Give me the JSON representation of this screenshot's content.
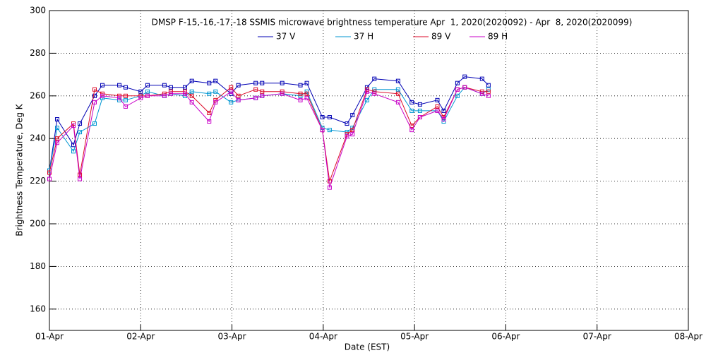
{
  "chart_data": {
    "type": "line",
    "title": "DMSP F-15,-16,-17,-18 SSMIS microwave brightness temperature Apr  1, 2020(2020092) - Apr  8, 2020(2020099)",
    "x_label": "Date (EST)",
    "y_label": "Brightness Temperature, Deg K",
    "x": [
      0,
      0.085,
      0.263,
      0.333,
      0.495,
      0.58,
      0.766,
      0.835,
      1.0,
      1.075,
      1.26,
      1.33,
      1.485,
      1.56,
      1.75,
      1.82,
      1.99,
      2.07,
      2.26,
      2.33,
      2.55,
      2.75,
      2.82,
      2.99,
      3.07,
      3.26,
      3.32,
      3.48,
      3.56,
      3.82,
      3.97,
      4.06,
      4.25,
      4.32,
      4.47,
      4.55,
      4.74,
      4.81
    ],
    "series": [
      {
        "name": "37 V",
        "color": "#0000b4",
        "values": [
          225,
          249,
          237,
          247,
          260,
          265,
          265,
          264,
          262,
          265,
          265,
          264,
          264,
          267,
          266,
          267,
          261,
          265,
          266,
          266,
          266,
          265,
          266,
          250,
          250,
          247,
          251,
          264,
          268,
          267,
          257,
          256,
          258,
          253,
          266,
          269,
          268,
          265
        ]
      },
      {
        "name": "37 H",
        "color": "#0096d2",
        "values": [
          225,
          245,
          234,
          243,
          247,
          259,
          258,
          258,
          260,
          262,
          260,
          261,
          260,
          262,
          261,
          262,
          257,
          258,
          259,
          260,
          261,
          260,
          262,
          245,
          244,
          243,
          245,
          258,
          263,
          263,
          253,
          253,
          253,
          248,
          260,
          264,
          261,
          263
        ]
      },
      {
        "name": "89 V",
        "color": "#dc0a28",
        "values": [
          224,
          240,
          247,
          223,
          263,
          261,
          260,
          260,
          260,
          260,
          261,
          262,
          262,
          260,
          252,
          258,
          264,
          260,
          263,
          262,
          262,
          261,
          261,
          244,
          220,
          242,
          244,
          263,
          262,
          261,
          246,
          250,
          255,
          250,
          263,
          264,
          262,
          262
        ]
      },
      {
        "name": "89 H",
        "color": "#c800c8",
        "values": [
          221,
          238,
          246,
          221,
          257,
          260,
          259,
          255,
          259,
          260,
          260,
          261,
          261,
          257,
          248,
          257,
          262,
          258,
          259,
          260,
          261,
          258,
          259,
          244,
          217,
          241,
          242,
          262,
          261,
          257,
          244,
          250,
          253,
          249,
          263,
          264,
          261,
          260
        ]
      }
    ],
    "xlim": [
      0,
      7
    ],
    "xticks": [
      {
        "value": 0,
        "label": "01-Apr"
      },
      {
        "value": 1,
        "label": "02-Apr"
      },
      {
        "value": 2,
        "label": "03-Apr"
      },
      {
        "value": 3,
        "label": "04-Apr"
      },
      {
        "value": 4,
        "label": "05-Apr"
      },
      {
        "value": 5,
        "label": "06-Apr"
      },
      {
        "value": 6,
        "label": "07-Apr"
      },
      {
        "value": 7,
        "label": "08-Apr"
      }
    ],
    "ylim": [
      150,
      300
    ],
    "yticks": [
      160,
      180,
      200,
      220,
      240,
      260,
      280,
      300
    ],
    "grid": true
  }
}
